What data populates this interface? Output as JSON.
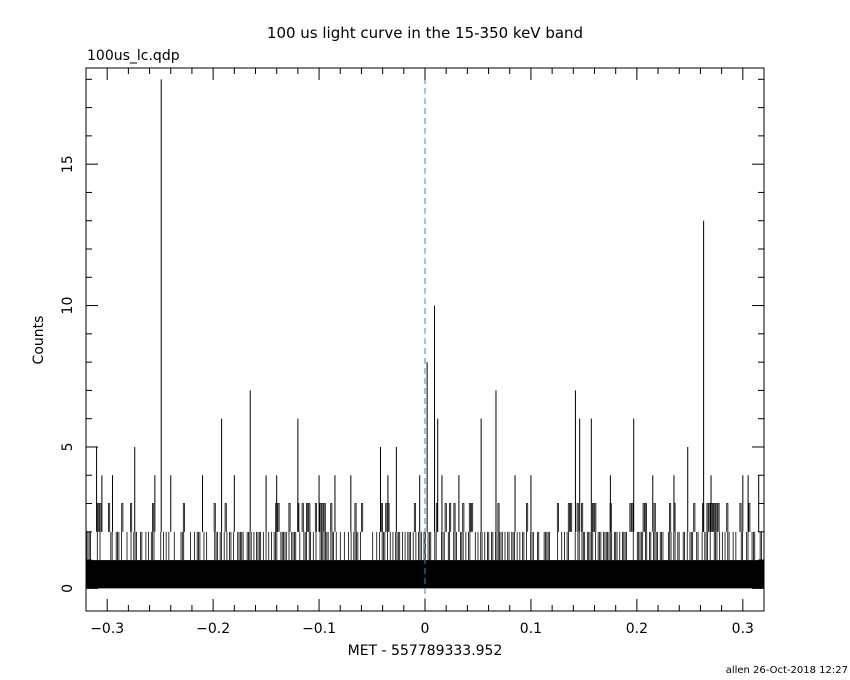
{
  "chart_data": {
    "type": "line",
    "title": "100 us light curve in the 15-350 keV band",
    "subtitle": "100us_lc.qdp",
    "xlabel": "MET - 557789333.952",
    "ylabel": "Counts",
    "footer": "allen 26-Oct-2018 12:27",
    "xlim": [
      -0.32,
      0.32
    ],
    "ylim": [
      -0.8,
      18.4
    ],
    "xticks": [
      -0.3,
      -0.2,
      -0.1,
      0,
      0.1,
      0.2,
      0.3
    ],
    "xtick_labels": [
      "-0.3",
      "-0.2",
      "-0.1",
      "0",
      "0.1",
      "0.2",
      "0.3"
    ],
    "yticks": [
      0,
      5,
      10,
      15
    ],
    "ytick_labels": [
      "0",
      "5",
      "10",
      "15"
    ],
    "trigger_line_x": 0,
    "bin_width_s": 0.0001,
    "baseline_counts": [
      0,
      1
    ],
    "frequent_level_counts": 2,
    "spikes": [
      {
        "x": -0.249,
        "y": 18
      },
      {
        "x": -0.31,
        "y": 5
      },
      {
        "x": -0.305,
        "y": 4
      },
      {
        "x": -0.295,
        "y": 4
      },
      {
        "x": -0.274,
        "y": 5
      },
      {
        "x": -0.255,
        "y": 4
      },
      {
        "x": -0.24,
        "y": 4
      },
      {
        "x": -0.21,
        "y": 4
      },
      {
        "x": -0.192,
        "y": 6
      },
      {
        "x": -0.18,
        "y": 4
      },
      {
        "x": -0.165,
        "y": 7
      },
      {
        "x": -0.15,
        "y": 4
      },
      {
        "x": -0.14,
        "y": 4
      },
      {
        "x": -0.12,
        "y": 6
      },
      {
        "x": -0.1,
        "y": 4
      },
      {
        "x": -0.085,
        "y": 4
      },
      {
        "x": -0.07,
        "y": 4
      },
      {
        "x": -0.042,
        "y": 5
      },
      {
        "x": -0.035,
        "y": 4
      },
      {
        "x": -0.027,
        "y": 5
      },
      {
        "x": -0.005,
        "y": 4
      },
      {
        "x": 0.002,
        "y": 8
      },
      {
        "x": 0.009,
        "y": 10
      },
      {
        "x": 0.012,
        "y": 6
      },
      {
        "x": 0.016,
        "y": 4
      },
      {
        "x": 0.032,
        "y": 4
      },
      {
        "x": 0.053,
        "y": 6
      },
      {
        "x": 0.067,
        "y": 7
      },
      {
        "x": 0.085,
        "y": 4
      },
      {
        "x": 0.1,
        "y": 4
      },
      {
        "x": 0.142,
        "y": 7
      },
      {
        "x": 0.146,
        "y": 6
      },
      {
        "x": 0.157,
        "y": 6
      },
      {
        "x": 0.175,
        "y": 4
      },
      {
        "x": 0.197,
        "y": 6
      },
      {
        "x": 0.215,
        "y": 4
      },
      {
        "x": 0.235,
        "y": 4
      },
      {
        "x": 0.248,
        "y": 5
      },
      {
        "x": 0.263,
        "y": 13
      },
      {
        "x": 0.27,
        "y": 4
      },
      {
        "x": 0.3,
        "y": 4
      },
      {
        "x": 0.305,
        "y": 4
      },
      {
        "x": 0.315,
        "y": 4
      }
    ],
    "grid": false,
    "legend": "none"
  },
  "colors": {
    "data": "#000000",
    "trigger_line": "#2f8fbf",
    "background": "#ffffff"
  }
}
